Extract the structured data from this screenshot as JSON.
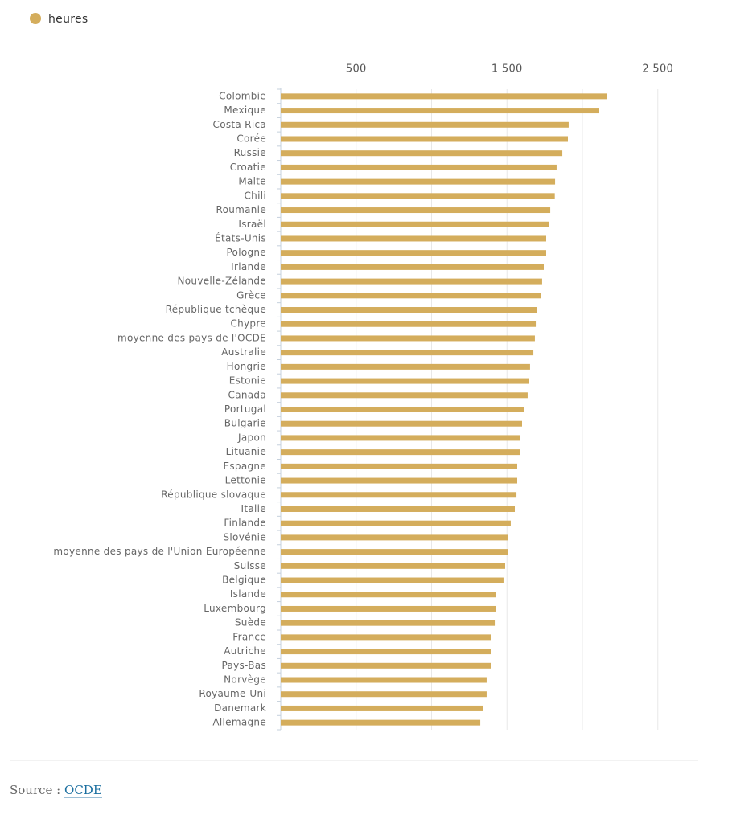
{
  "chart_data": {
    "type": "bar",
    "orientation": "horizontal",
    "legend": "heures",
    "color": "#d4ad5c",
    "categories": [
      "Colombie",
      "Mexique",
      "Costa Rica",
      "Corée",
      "Russie",
      "Croatie",
      "Malte",
      "Chili",
      "Roumanie",
      "Israël",
      "États-Unis",
      "Pologne",
      "Irlande",
      "Nouvelle-Zélande",
      "Grèce",
      "République tchèque",
      "Chypre",
      "moyenne des pays de l'OCDE",
      "Australie",
      "Hongrie",
      "Estonie",
      "Canada",
      "Portugal",
      "Bulgarie",
      "Japon",
      "Lituanie",
      "Espagne",
      "Lettonie",
      "République slovaque",
      "Italie",
      "Finlande",
      "Slovénie",
      "moyenne des pays de l'Union Européenne",
      "Suisse",
      "Belgique",
      "Islande",
      "Luxembourg",
      "Suède",
      "France",
      "Autriche",
      "Pays-Bas",
      "Norvège",
      "Royaume-Uni",
      "Danemark",
      "Allemagne"
    ],
    "values": [
      2165,
      2112,
      1909,
      1904,
      1867,
      1829,
      1819,
      1817,
      1787,
      1776,
      1760,
      1760,
      1744,
      1733,
      1723,
      1696,
      1691,
      1685,
      1675,
      1653,
      1648,
      1637,
      1611,
      1600,
      1589,
      1589,
      1568,
      1568,
      1563,
      1552,
      1525,
      1509,
      1509,
      1488,
      1477,
      1429,
      1424,
      1419,
      1397,
      1397,
      1392,
      1365,
      1365,
      1339,
      1323
    ],
    "xlim": [
      0,
      2750
    ],
    "xticks": [
      500,
      {
        "value": 1500,
        "label": "1 500"
      },
      {
        "value": 2500,
        "label": "2 500"
      }
    ],
    "xminor": [
      1000,
      2000
    ],
    "grid": true
  },
  "source": {
    "prefix": "Source :",
    "link": "OCDE"
  }
}
